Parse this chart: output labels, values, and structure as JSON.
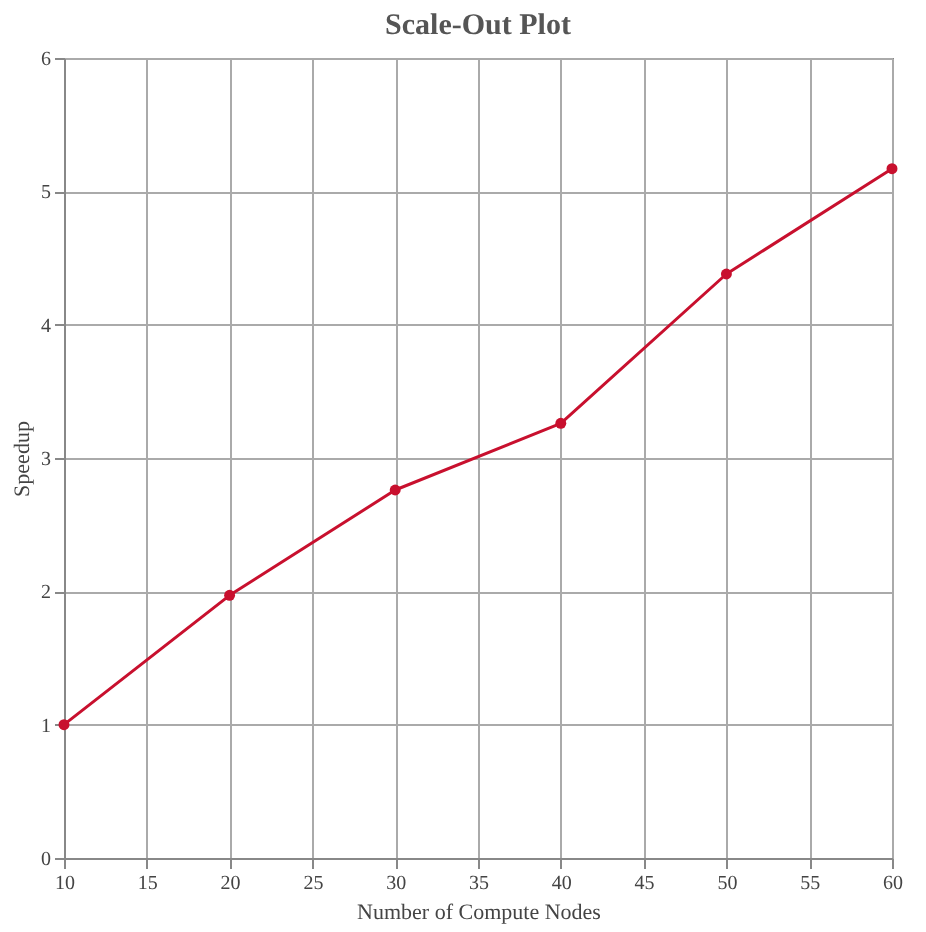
{
  "chart_data": {
    "type": "line",
    "title": "Scale-Out Plot",
    "xlabel": "Number of Compute Nodes",
    "ylabel": "Speedup",
    "x": [
      10,
      20,
      30,
      40,
      50,
      60
    ],
    "series": [
      {
        "color": "#c8102e",
        "values": [
          1,
          1.97,
          2.76,
          3.26,
          4.38,
          5.17
        ]
      }
    ],
    "xlim": [
      10,
      60
    ],
    "xticks": [
      10,
      15,
      20,
      25,
      30,
      35,
      40,
      45,
      50,
      55,
      60
    ],
    "ylim": [
      0,
      6
    ],
    "yticks": [
      0,
      1,
      2,
      3,
      4,
      5,
      6
    ],
    "grid": true,
    "marker": "circle",
    "line_style": "solid"
  }
}
